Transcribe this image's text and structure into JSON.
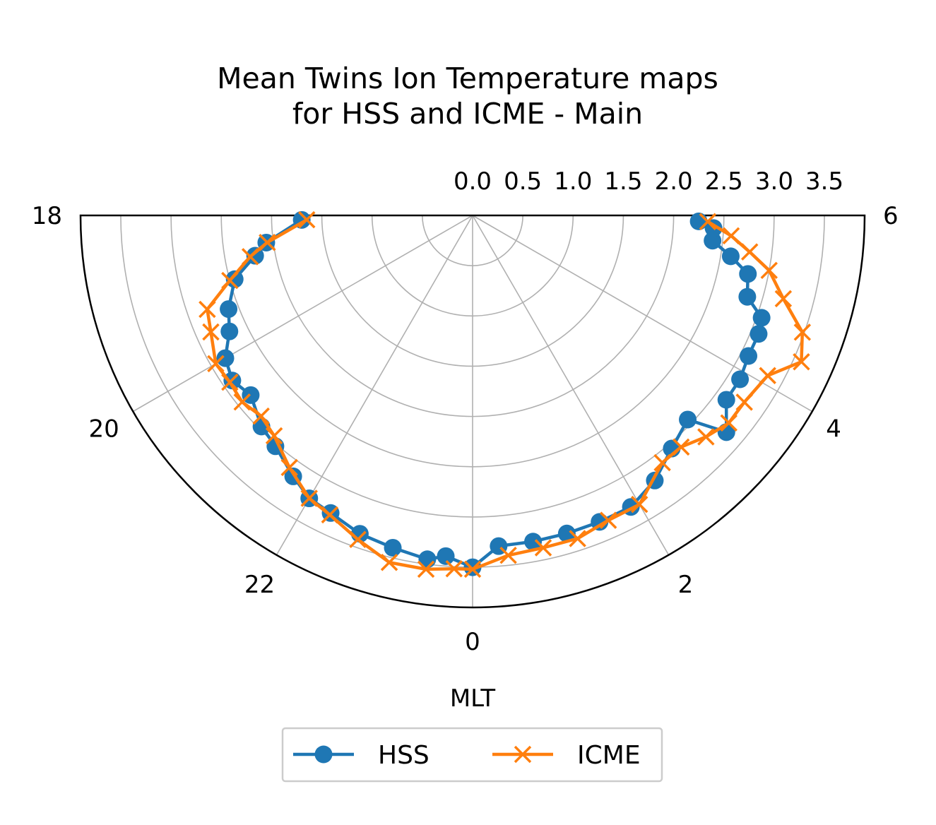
{
  "chart_data": {
    "type": "polar-line",
    "title": "Mean Twins Ion Temperature maps\nfor HSS and ICME - Main",
    "xlabel": "MLT",
    "theta_ticks": [
      "0",
      "2",
      "4",
      "6",
      "18",
      "20",
      "22"
    ],
    "r_ticks": [
      "0.0",
      "0.5",
      "1.0",
      "1.5",
      "2.0",
      "2.5",
      "3.0",
      "3.5"
    ],
    "rlim": [
      0,
      3.9
    ],
    "mlt_range": [
      18,
      30
    ],
    "grid": true,
    "legend_position": "bottom-center",
    "series": [
      {
        "name": "HSS",
        "color": "#1f77b4",
        "marker": "circle",
        "points": [
          {
            "mlt": 18.1,
            "r": 1.7
          },
          {
            "mlt": 18.5,
            "r": 2.07
          },
          {
            "mlt": 18.7,
            "r": 2.2
          },
          {
            "mlt": 19.0,
            "r": 2.45
          },
          {
            "mlt": 19.4,
            "r": 2.6
          },
          {
            "mlt": 19.7,
            "r": 2.68
          },
          {
            "mlt": 20.0,
            "r": 2.84
          },
          {
            "mlt": 20.3,
            "r": 2.9
          },
          {
            "mlt": 20.6,
            "r": 2.84
          },
          {
            "mlt": 21.0,
            "r": 2.97
          },
          {
            "mlt": 21.3,
            "r": 3.02
          },
          {
            "mlt": 21.7,
            "r": 3.15
          },
          {
            "mlt": 22.0,
            "r": 3.25
          },
          {
            "mlt": 22.3,
            "r": 3.28
          },
          {
            "mlt": 22.7,
            "r": 3.36
          },
          {
            "mlt": 23.1,
            "r": 3.4
          },
          {
            "mlt": 23.5,
            "r": 3.45
          },
          {
            "mlt": 23.7,
            "r": 3.4
          },
          {
            "mlt": 0.0,
            "r": 3.5
          },
          {
            "mlt": 0.3,
            "r": 3.3
          },
          {
            "mlt": 0.7,
            "r": 3.3
          },
          {
            "mlt": 1.1,
            "r": 3.3
          },
          {
            "mlt": 1.5,
            "r": 3.3
          },
          {
            "mlt": 1.9,
            "r": 3.3
          },
          {
            "mlt": 2.3,
            "r": 3.2
          },
          {
            "mlt": 2.7,
            "r": 3.05
          },
          {
            "mlt": 3.1,
            "r": 2.95
          },
          {
            "mlt": 3.3,
            "r": 3.32
          },
          {
            "mlt": 3.6,
            "r": 3.12
          },
          {
            "mlt": 3.9,
            "r": 3.12
          },
          {
            "mlt": 4.2,
            "r": 3.08
          },
          {
            "mlt": 4.5,
            "r": 3.08
          },
          {
            "mlt": 4.7,
            "r": 3.05
          },
          {
            "mlt": 4.9,
            "r": 2.85
          },
          {
            "mlt": 5.2,
            "r": 2.8
          },
          {
            "mlt": 5.4,
            "r": 2.6
          },
          {
            "mlt": 5.6,
            "r": 2.4
          },
          {
            "mlt": 5.8,
            "r": 2.4
          },
          {
            "mlt": 5.9,
            "r": 2.25
          }
        ]
      },
      {
        "name": "ICME",
        "color": "#ff7f0e",
        "marker": "x",
        "points": [
          {
            "mlt": 18.1,
            "r": 1.65
          },
          {
            "mlt": 18.5,
            "r": 2.06
          },
          {
            "mlt": 18.7,
            "r": 2.25
          },
          {
            "mlt": 19.0,
            "r": 2.5
          },
          {
            "mlt": 19.3,
            "r": 2.8
          },
          {
            "mlt": 19.6,
            "r": 2.85
          },
          {
            "mlt": 20.0,
            "r": 2.95
          },
          {
            "mlt": 20.3,
            "r": 2.93
          },
          {
            "mlt": 20.6,
            "r": 2.95
          },
          {
            "mlt": 20.9,
            "r": 2.9
          },
          {
            "mlt": 21.2,
            "r": 2.95
          },
          {
            "mlt": 21.6,
            "r": 3.1
          },
          {
            "mlt": 22.0,
            "r": 3.25
          },
          {
            "mlt": 22.3,
            "r": 3.3
          },
          {
            "mlt": 22.7,
            "r": 3.42
          },
          {
            "mlt": 23.1,
            "r": 3.55
          },
          {
            "mlt": 23.5,
            "r": 3.55
          },
          {
            "mlt": 23.8,
            "r": 3.52
          },
          {
            "mlt": 0.0,
            "r": 3.52
          },
          {
            "mlt": 0.4,
            "r": 3.4
          },
          {
            "mlt": 0.8,
            "r": 3.38
          },
          {
            "mlt": 1.2,
            "r": 3.38
          },
          {
            "mlt": 1.6,
            "r": 3.32
          },
          {
            "mlt": 2.0,
            "r": 3.32
          },
          {
            "mlt": 2.5,
            "r": 3.1
          },
          {
            "mlt": 2.8,
            "r": 3.1
          },
          {
            "mlt": 3.1,
            "r": 3.2
          },
          {
            "mlt": 3.4,
            "r": 3.28
          },
          {
            "mlt": 3.7,
            "r": 3.28
          },
          {
            "mlt": 4.1,
            "r": 3.34
          },
          {
            "mlt": 4.4,
            "r": 3.58
          },
          {
            "mlt": 4.7,
            "r": 3.48
          },
          {
            "mlt": 5.0,
            "r": 3.2
          },
          {
            "mlt": 5.3,
            "r": 3.0
          },
          {
            "mlt": 5.5,
            "r": 2.78
          },
          {
            "mlt": 5.7,
            "r": 2.58
          },
          {
            "mlt": 5.9,
            "r": 2.34
          }
        ]
      }
    ]
  }
}
